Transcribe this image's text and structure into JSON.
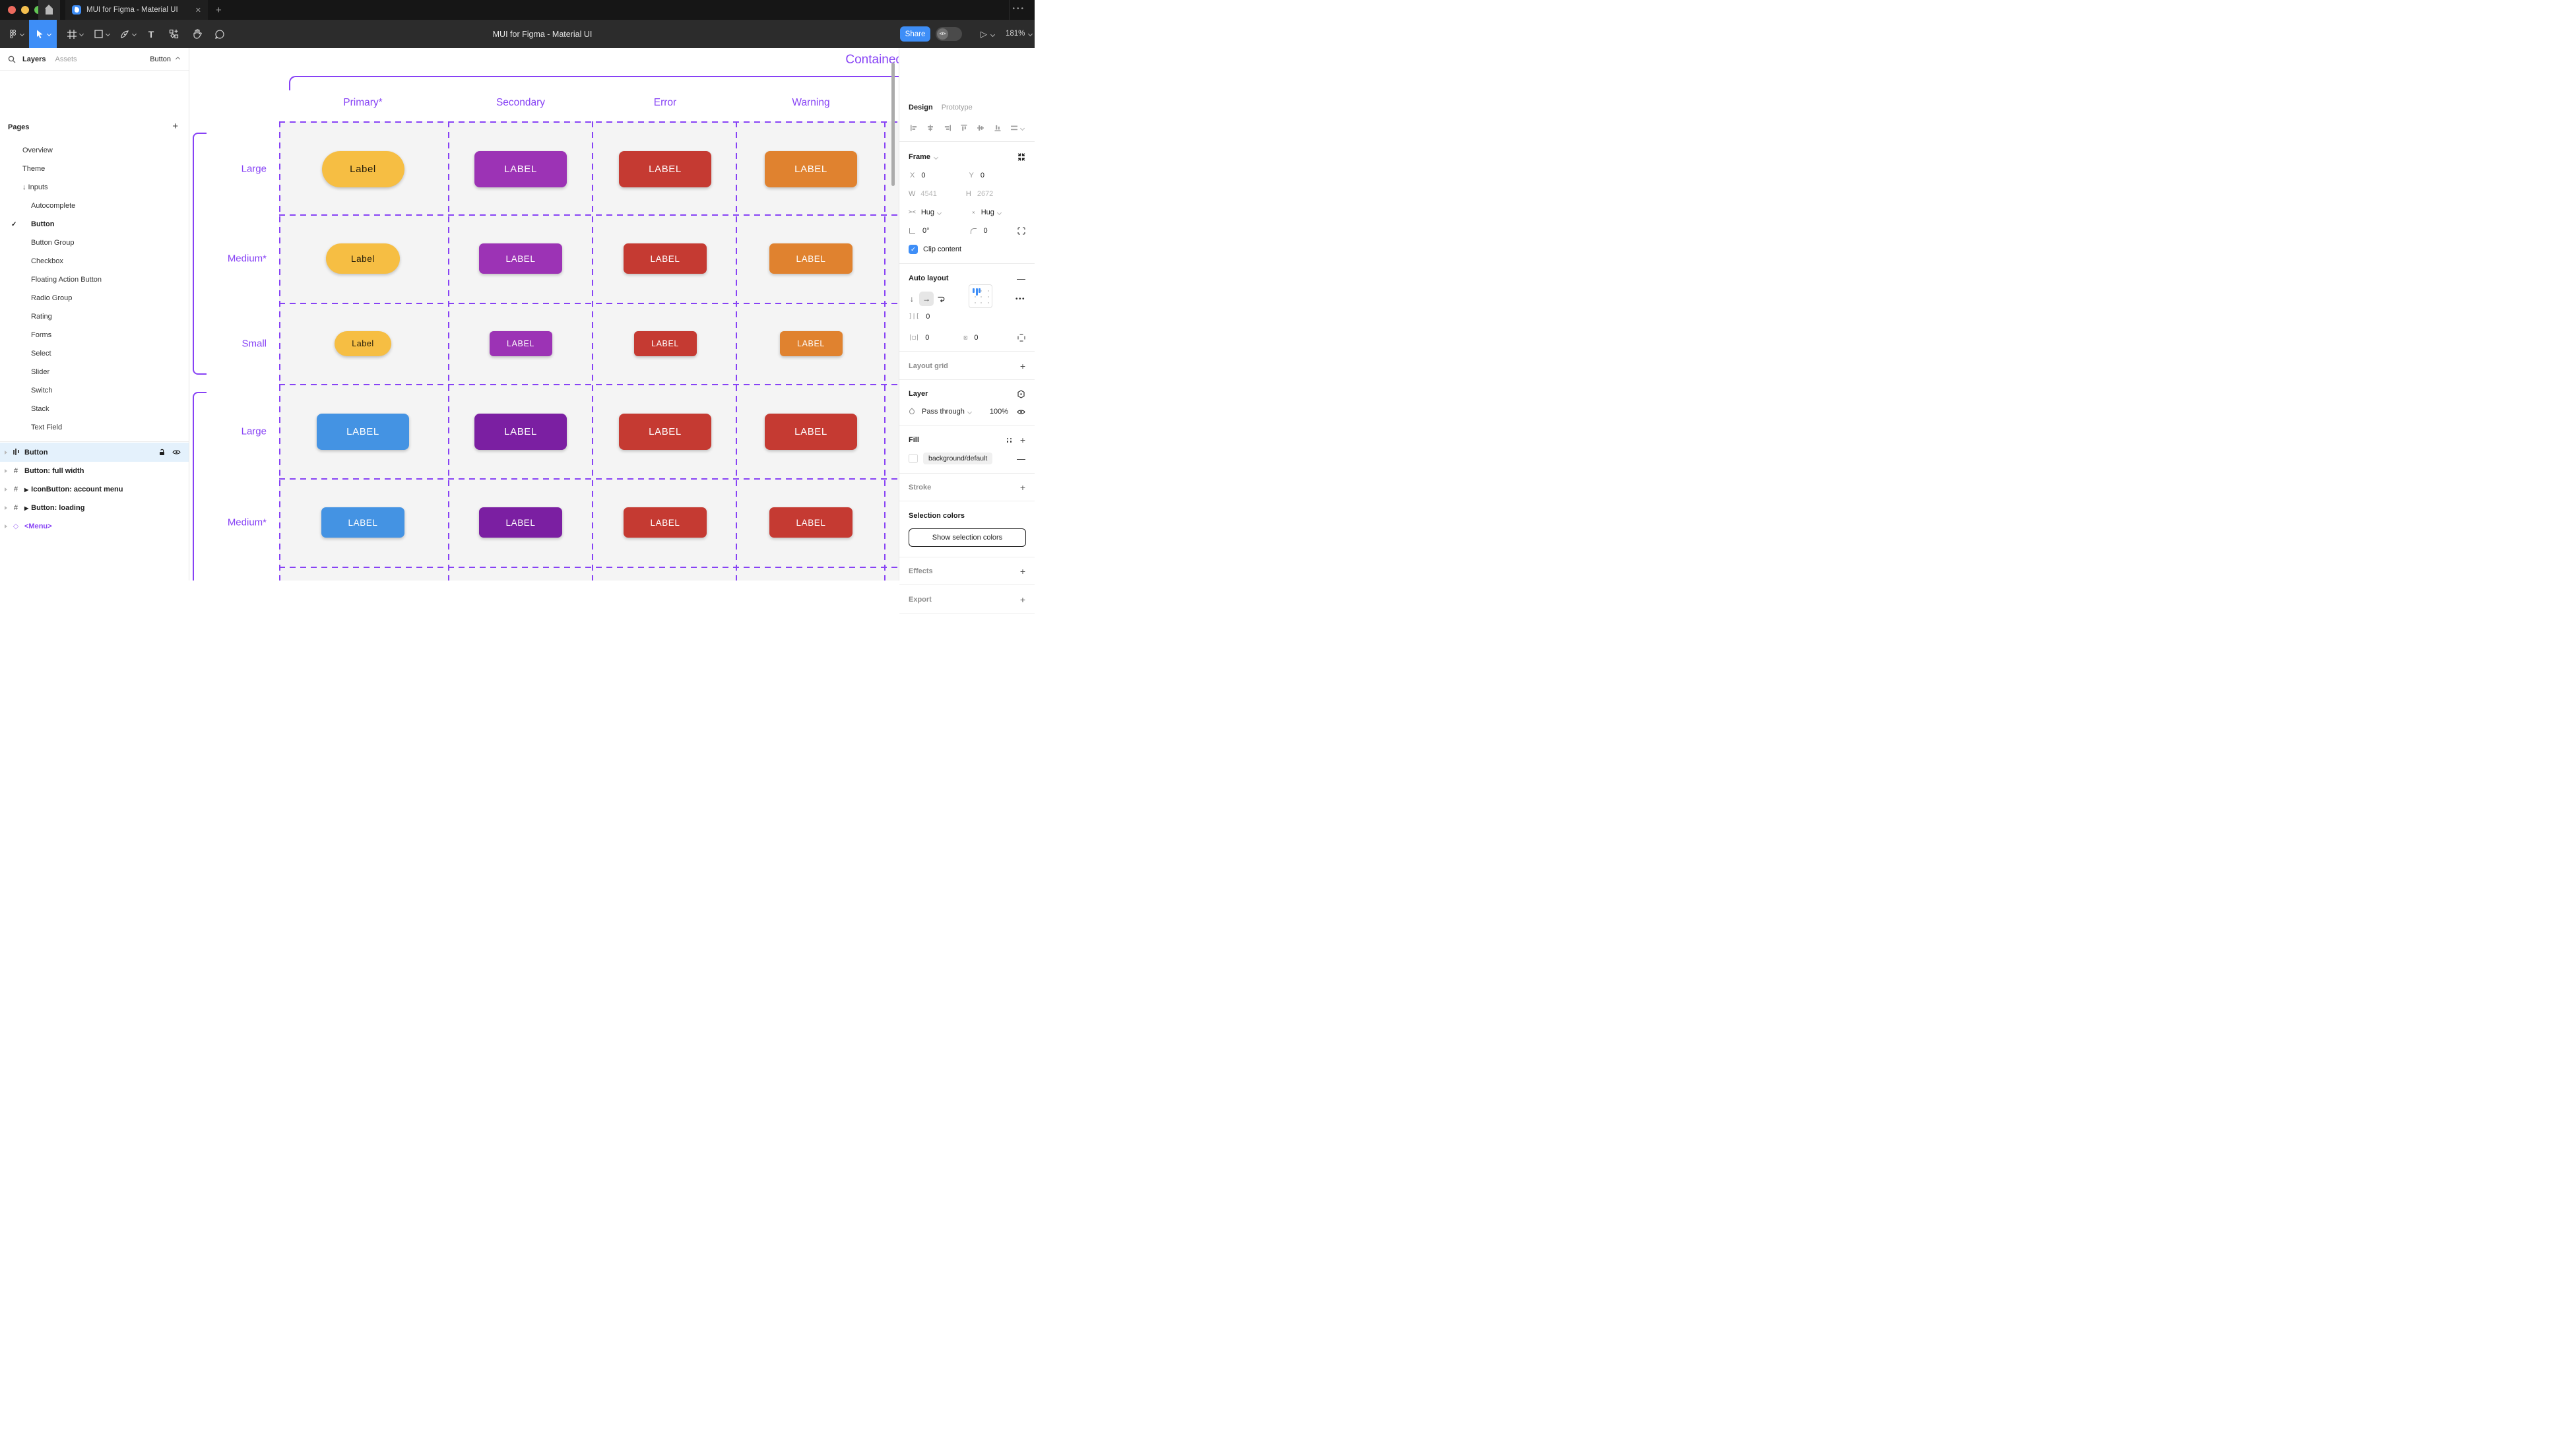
{
  "window": {
    "tab_title": "MUI for Figma - Material UI",
    "toolbar_title": "MUI for Figma - Material UI",
    "share_label": "Share",
    "dev_toggle_glyph": "</>",
    "zoom_level": "181%",
    "window_dots": "•••",
    "tab_close_glyph": "✕",
    "tab_new_glyph": "+"
  },
  "colors": {
    "figma_purple": "#8742f5",
    "accent_blue": "#3e8ef7",
    "selected_row": "#e4f1fc",
    "cell_gray": "#f4f4f4",
    "traffic": [
      "#ec6a5e",
      "#f4bf4f",
      "#61c554"
    ]
  },
  "sidebar": {
    "tabs": {
      "layers": "Layers",
      "assets": "Assets"
    },
    "component_indicator": "Button",
    "pages_header": "Pages",
    "pages": [
      {
        "label": "Overview",
        "level": 1,
        "checked": false
      },
      {
        "label": "Theme",
        "level": 1,
        "checked": false
      },
      {
        "label": "↓ Inputs",
        "level": 1,
        "checked": false
      },
      {
        "label": "Autocomplete",
        "level": 2,
        "checked": false
      },
      {
        "label": "Button",
        "level": 2,
        "checked": true
      },
      {
        "label": "Button Group",
        "level": 2,
        "checked": false
      },
      {
        "label": "Checkbox",
        "level": 2,
        "checked": false
      },
      {
        "label": "Floating Action Button",
        "level": 2,
        "checked": false
      },
      {
        "label": "Radio Group",
        "level": 2,
        "checked": false
      },
      {
        "label": "Rating",
        "level": 2,
        "checked": false
      },
      {
        "label": "Forms",
        "level": 2,
        "checked": false
      },
      {
        "label": "Select",
        "level": 2,
        "checked": false
      },
      {
        "label": "Slider",
        "level": 2,
        "checked": false
      },
      {
        "label": "Switch",
        "level": 2,
        "checked": false
      },
      {
        "label": "Stack",
        "level": 2,
        "checked": false
      },
      {
        "label": "Text Field",
        "level": 2,
        "checked": false
      }
    ],
    "layers": [
      {
        "label": "Button",
        "icon": "autolayout",
        "selected": true,
        "play": false,
        "purple": false
      },
      {
        "label": "Button: full width",
        "icon": "frame",
        "selected": false,
        "play": false,
        "purple": false
      },
      {
        "label": "IconButton: account menu",
        "icon": "frame",
        "selected": false,
        "play": true,
        "purple": false
      },
      {
        "label": "Button: loading",
        "icon": "frame",
        "selected": false,
        "play": true,
        "purple": false
      },
      {
        "label": "<Menu>",
        "icon": "diamond",
        "selected": false,
        "play": false,
        "purple": true
      }
    ]
  },
  "canvas": {
    "frame_title": "Contained",
    "columns": [
      "Primary*",
      "Secondary",
      "Error",
      "Warning"
    ],
    "rows": [
      {
        "label": "Large",
        "size": "lg",
        "buttons": [
          {
            "text": "Label",
            "bg": "#f6be43",
            "fg": "rgba(0,0,0,0.87)",
            "pill": true
          },
          {
            "text": "LABEL",
            "bg": "#9c33b5",
            "fg": "#ffffff",
            "pill": false
          },
          {
            "text": "LABEL",
            "bg": "#c53a32",
            "fg": "#ffffff",
            "pill": false
          },
          {
            "text": "LABEL",
            "bg": "#e0822f",
            "fg": "#ffffff",
            "pill": false
          }
        ]
      },
      {
        "label": "Medium*",
        "size": "md",
        "buttons": [
          {
            "text": "Label",
            "bg": "#f6be43",
            "fg": "rgba(0,0,0,0.87)",
            "pill": true
          },
          {
            "text": "LABEL",
            "bg": "#9c33b5",
            "fg": "#ffffff",
            "pill": false
          },
          {
            "text": "LABEL",
            "bg": "#c53a32",
            "fg": "#ffffff",
            "pill": false
          },
          {
            "text": "LABEL",
            "bg": "#e0822f",
            "fg": "#ffffff",
            "pill": false
          }
        ]
      },
      {
        "label": "Small",
        "size": "sm",
        "buttons": [
          {
            "text": "Label",
            "bg": "#f6be43",
            "fg": "rgba(0,0,0,0.87)",
            "pill": true
          },
          {
            "text": "LABEL",
            "bg": "#9c33b5",
            "fg": "#ffffff",
            "pill": false
          },
          {
            "text": "LABEL",
            "bg": "#c53a32",
            "fg": "#ffffff",
            "pill": false
          },
          {
            "text": "LABEL",
            "bg": "#e0822f",
            "fg": "#ffffff",
            "pill": false
          }
        ]
      },
      {
        "label": "Large",
        "size": "lg",
        "buttons": [
          {
            "text": "LABEL",
            "bg": "#4493e3",
            "fg": "#ffffff",
            "pill": false
          },
          {
            "text": "LABEL",
            "bg": "#7b1fa2",
            "fg": "#ffffff",
            "pill": false
          },
          {
            "text": "LABEL",
            "bg": "#c53a32",
            "fg": "#ffffff",
            "pill": false
          },
          {
            "text": "LABEL",
            "bg": "#c53a32",
            "fg": "#ffffff",
            "pill": false
          }
        ]
      },
      {
        "label": "Medium*",
        "size": "md",
        "buttons": [
          {
            "text": "LABEL",
            "bg": "#4493e3",
            "fg": "#ffffff",
            "pill": false
          },
          {
            "text": "LABEL",
            "bg": "#7b1fa2",
            "fg": "#ffffff",
            "pill": false
          },
          {
            "text": "LABEL",
            "bg": "#c53a32",
            "fg": "#ffffff",
            "pill": false
          },
          {
            "text": "LABEL",
            "bg": "#c53a32",
            "fg": "#ffffff",
            "pill": false
          }
        ]
      }
    ]
  },
  "panel": {
    "tabs": {
      "design": "Design",
      "prototype": "Prototype"
    },
    "frame": {
      "title": "Frame",
      "x_label": "X",
      "x": "0",
      "y_label": "Y",
      "y": "0",
      "w_label": "W",
      "w": "4541",
      "h_label": "H",
      "h": "2672",
      "hug_h": "Hug",
      "hug_v": "Hug",
      "rotation": "0°",
      "corner_radius": "0",
      "clip_label": "Clip content"
    },
    "auto_layout": {
      "title": "Auto layout",
      "gap": "0",
      "pad_h": "0",
      "pad_v": "0",
      "more": "•••"
    },
    "layout_grid": {
      "title": "Layout grid"
    },
    "layer": {
      "title": "Layer",
      "blend_mode": "Pass through",
      "opacity": "100%"
    },
    "fill": {
      "title": "Fill",
      "token": "background/default"
    },
    "stroke": {
      "title": "Stroke"
    },
    "selection_colors": {
      "title": "Selection colors",
      "button_label": "Show selection colors"
    },
    "effects": {
      "title": "Effects"
    },
    "export": {
      "title": "Export"
    }
  }
}
